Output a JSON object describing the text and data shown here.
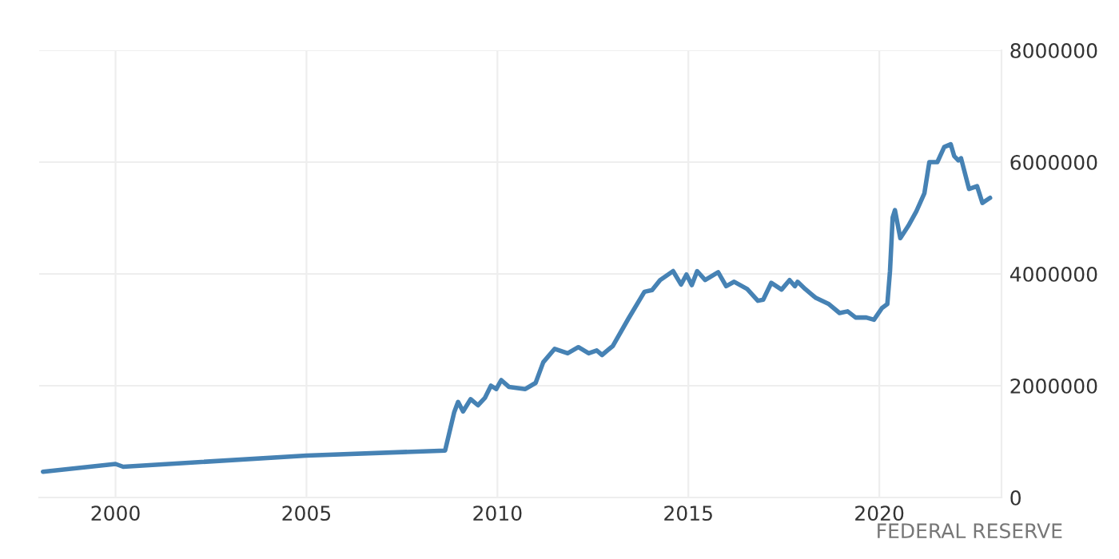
{
  "chart_data": {
    "type": "line",
    "x": [
      1998.1,
      2000.0,
      2000.2,
      2005.0,
      2008.63,
      2008.87,
      2008.97,
      2009.1,
      2009.3,
      2009.49,
      2009.67,
      2009.83,
      2009.97,
      2010.1,
      2010.3,
      2010.73,
      2011.0,
      2011.2,
      2011.5,
      2011.84,
      2012.12,
      2012.39,
      2012.6,
      2012.74,
      2013.02,
      2013.43,
      2013.85,
      2014.05,
      2014.26,
      2014.6,
      2014.81,
      2014.95,
      2015.09,
      2015.23,
      2015.44,
      2015.78,
      2015.99,
      2016.2,
      2016.54,
      2016.82,
      2016.96,
      2017.17,
      2017.44,
      2017.65,
      2017.79,
      2017.86,
      2018.06,
      2018.34,
      2018.68,
      2018.96,
      2019.17,
      2019.38,
      2019.66,
      2019.86,
      2020.07,
      2020.21,
      2020.28,
      2020.35,
      2020.41,
      2020.55,
      2020.76,
      2020.97,
      2021.18,
      2021.31,
      2021.52,
      2021.7,
      2021.87,
      2021.96,
      2022.07,
      2022.14,
      2022.35,
      2022.56,
      2022.7,
      2022.9
    ],
    "series": [
      {
        "color": "#4682b4",
        "values": [
          460000,
          600000,
          550000,
          750000,
          840000,
          1530000,
          1710000,
          1540000,
          1760000,
          1650000,
          1780000,
          2000000,
          1940000,
          2100000,
          1980000,
          1940000,
          2050000,
          2420000,
          2660000,
          2580000,
          2690000,
          2580000,
          2630000,
          2550000,
          2710000,
          3200000,
          3680000,
          3710000,
          3890000,
          4050000,
          3810000,
          3990000,
          3800000,
          4050000,
          3890000,
          4030000,
          3780000,
          3860000,
          3730000,
          3520000,
          3540000,
          3840000,
          3720000,
          3890000,
          3780000,
          3860000,
          3730000,
          3570000,
          3460000,
          3300000,
          3330000,
          3220000,
          3220000,
          3180000,
          3390000,
          3460000,
          4050000,
          5010000,
          5140000,
          4640000,
          4860000,
          5120000,
          5440000,
          6000000,
          6000000,
          6270000,
          6320000,
          6110000,
          6030000,
          6070000,
          5520000,
          5570000,
          5270000,
          5360000
        ]
      }
    ],
    "xlim": [
      1998.0,
      2023.2
    ],
    "xticks": [
      2000,
      2005,
      2010,
      2015,
      2020
    ],
    "ylim": [
      0,
      8000000
    ],
    "yticks": [
      0,
      2000000,
      4000000,
      6000000,
      8000000
    ],
    "grid": true,
    "line_style": "solid",
    "marker": "none",
    "annotations": [
      "FEDERAL RESERVE"
    ]
  }
}
